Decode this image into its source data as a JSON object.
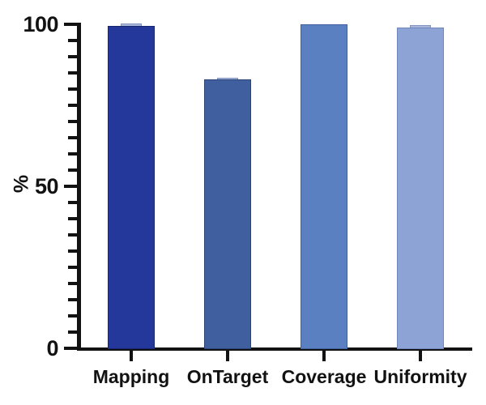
{
  "figure": {
    "background": "#ffffff",
    "axis_color": "#121212",
    "text_color": "#121212"
  },
  "chart_data": {
    "type": "bar",
    "ylabel": "%",
    "categories": [
      "Mapping",
      "OnTarget",
      "Coverage",
      "Uniformity"
    ],
    "values": [
      99.5,
      83,
      100,
      99
    ],
    "bar_colors": [
      "#24379b",
      "#3f5f9e",
      "#5b80c2",
      "#8ea3d5"
    ],
    "bar_border_colors": [
      "#18266f",
      "#2c4377",
      "#40619c",
      "#6f86ba"
    ],
    "error_cap_tops": [
      100.2,
      83.5,
      null,
      99.7
    ],
    "error_cap_color": "#aab7da",
    "error_cap_border_color": "#8193bf",
    "ylim": [
      0,
      100
    ],
    "yticks": [
      {
        "value": 0,
        "label": "0"
      },
      {
        "value": 50,
        "label": "50"
      },
      {
        "value": 100,
        "label": "100"
      }
    ],
    "minor_tick_step": 5,
    "grid": false,
    "legend": false
  }
}
